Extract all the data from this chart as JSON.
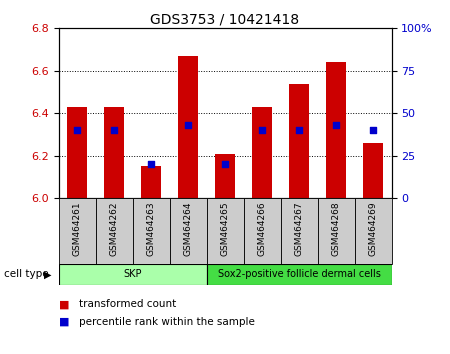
{
  "title": "GDS3753 / 10421418",
  "samples": [
    "GSM464261",
    "GSM464262",
    "GSM464263",
    "GSM464264",
    "GSM464265",
    "GSM464266",
    "GSM464267",
    "GSM464268",
    "GSM464269"
  ],
  "transformed_counts": [
    6.43,
    6.43,
    6.15,
    6.67,
    6.21,
    6.43,
    6.54,
    6.64,
    6.26
  ],
  "percentile_ranks": [
    40,
    40,
    20,
    43,
    20,
    40,
    40,
    43,
    40
  ],
  "cell_type_groups": [
    {
      "label": "SKP",
      "indices": [
        0,
        1,
        2,
        3
      ],
      "color": "#aaffaa"
    },
    {
      "label": "Sox2-positive follicle dermal cells",
      "indices": [
        4,
        5,
        6,
        7,
        8
      ],
      "color": "#44dd44"
    }
  ],
  "ylim_left": [
    6.0,
    6.8
  ],
  "ylim_right": [
    0,
    100
  ],
  "yticks_left": [
    6.0,
    6.2,
    6.4,
    6.6,
    6.8
  ],
  "yticks_right": [
    0,
    25,
    50,
    75,
    100
  ],
  "bar_color": "#CC0000",
  "dot_color": "#0000CC",
  "bar_width": 0.55,
  "background_color": "#ffffff",
  "grid_color": "#000000",
  "ylabel_left_color": "#CC0000",
  "ylabel_right_color": "#0000CC",
  "bar_base": 6.0,
  "sample_box_color": "#cccccc",
  "legend_red_label": "transformed count",
  "legend_blue_label": "percentile rank within the sample",
  "cell_type_label": "cell type"
}
